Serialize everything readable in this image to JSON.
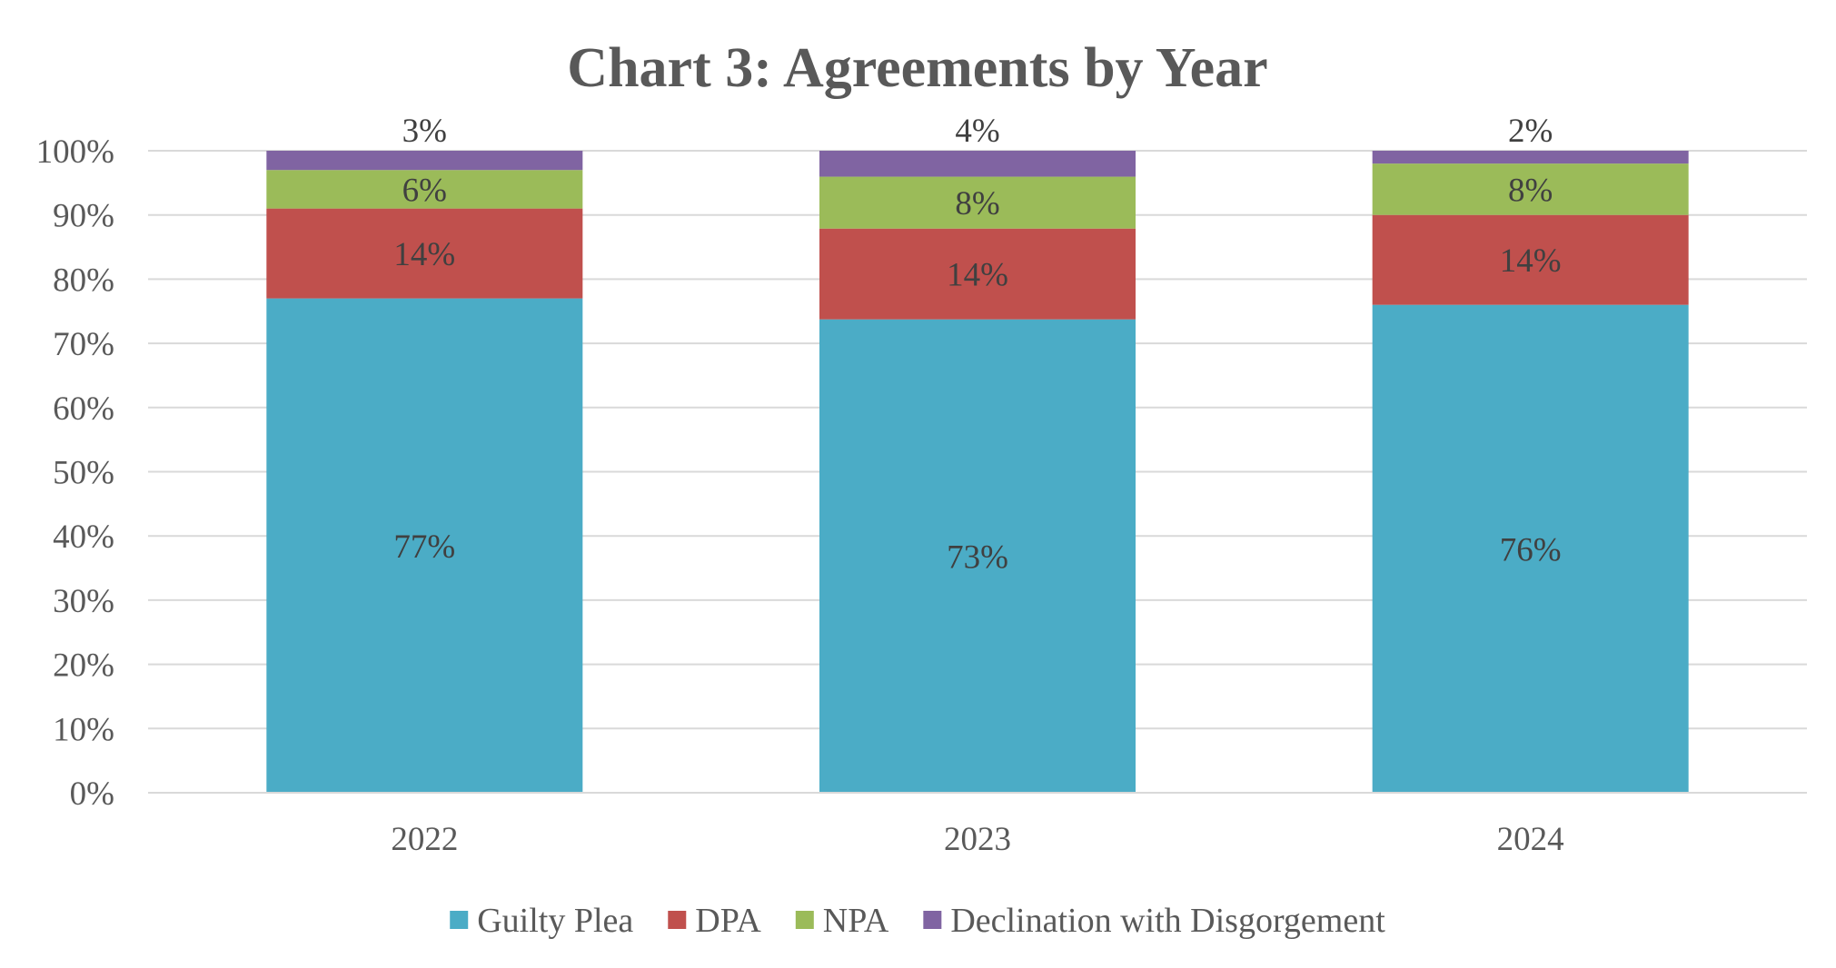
{
  "chart_data": {
    "type": "bar",
    "stacked": true,
    "title": "Chart 3: Agreements by Year",
    "xlabel": "",
    "ylabel": "",
    "categories": [
      "2022",
      "2023",
      "2024"
    ],
    "ylim": [
      0,
      100
    ],
    "yticks": [
      0,
      10,
      20,
      30,
      40,
      50,
      60,
      70,
      80,
      90,
      100
    ],
    "ytick_labels": [
      "0%",
      "10%",
      "20%",
      "30%",
      "40%",
      "50%",
      "60%",
      "70%",
      "80%",
      "90%",
      "100%"
    ],
    "grid": true,
    "legend_position": "bottom",
    "series": [
      {
        "name": "Guilty Plea",
        "color": "#4bacc6",
        "values": [
          77,
          73,
          76
        ],
        "labels": [
          "77%",
          "73%",
          "76%"
        ]
      },
      {
        "name": "DPA",
        "color": "#c0504d",
        "values": [
          14,
          14,
          14
        ],
        "labels": [
          "14%",
          "14%",
          "14%"
        ]
      },
      {
        "name": "NPA",
        "color": "#9bbb59",
        "values": [
          6,
          8,
          8
        ],
        "labels": [
          "6%",
          "8%",
          "8%"
        ]
      },
      {
        "name": "Declination with Disgorgement",
        "color": "#8064a2",
        "values": [
          3,
          4,
          2
        ],
        "labels": [
          "3%",
          "4%",
          "2%"
        ]
      }
    ]
  }
}
